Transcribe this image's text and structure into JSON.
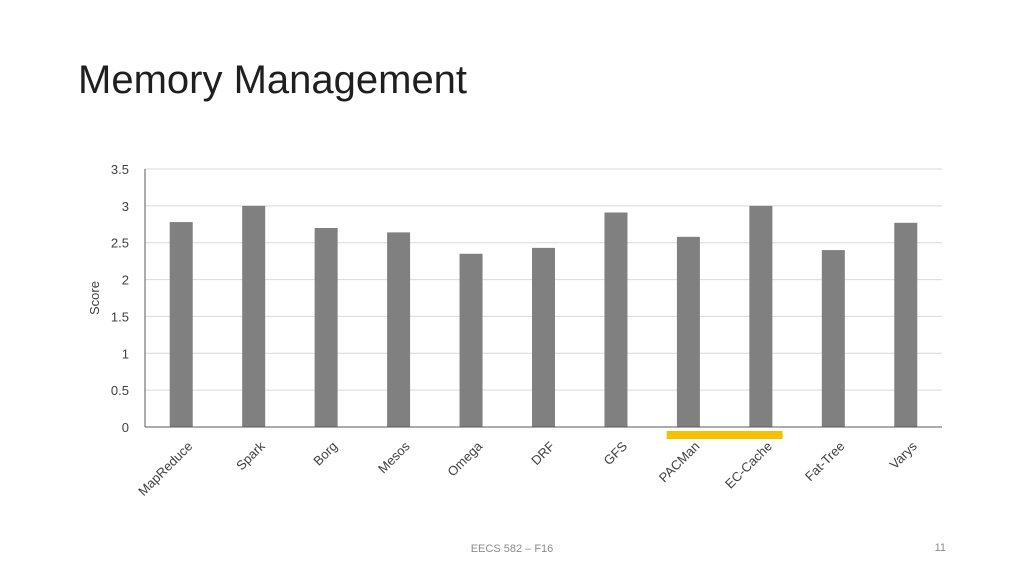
{
  "slide": {
    "title": "Memory Management",
    "footer": "EECS 582 – F16",
    "page_number": "11"
  },
  "chart_data": {
    "type": "bar",
    "categories": [
      "MapReduce",
      "Spark",
      "Borg",
      "Mesos",
      "Omega",
      "DRF",
      "GFS",
      "PACMan",
      "EC-Cache",
      "Fat-Tree",
      "Varys"
    ],
    "values": [
      2.78,
      3.0,
      2.7,
      2.64,
      2.35,
      2.43,
      2.91,
      2.58,
      3.0,
      2.4,
      2.77
    ],
    "ylabel": "Score",
    "ylim": [
      0,
      3.5
    ],
    "yticks": [
      0,
      0.5,
      1,
      1.5,
      2,
      2.5,
      3,
      3.5
    ],
    "ytick_labels": [
      "0",
      "0.5",
      "1",
      "1.5",
      "2",
      "2.5",
      "3",
      "3.5"
    ],
    "grid": true,
    "bar_color": "#808080",
    "highlight": {
      "categories": [
        "PACMan",
        "EC-Cache"
      ],
      "color": "#f5c000"
    }
  }
}
